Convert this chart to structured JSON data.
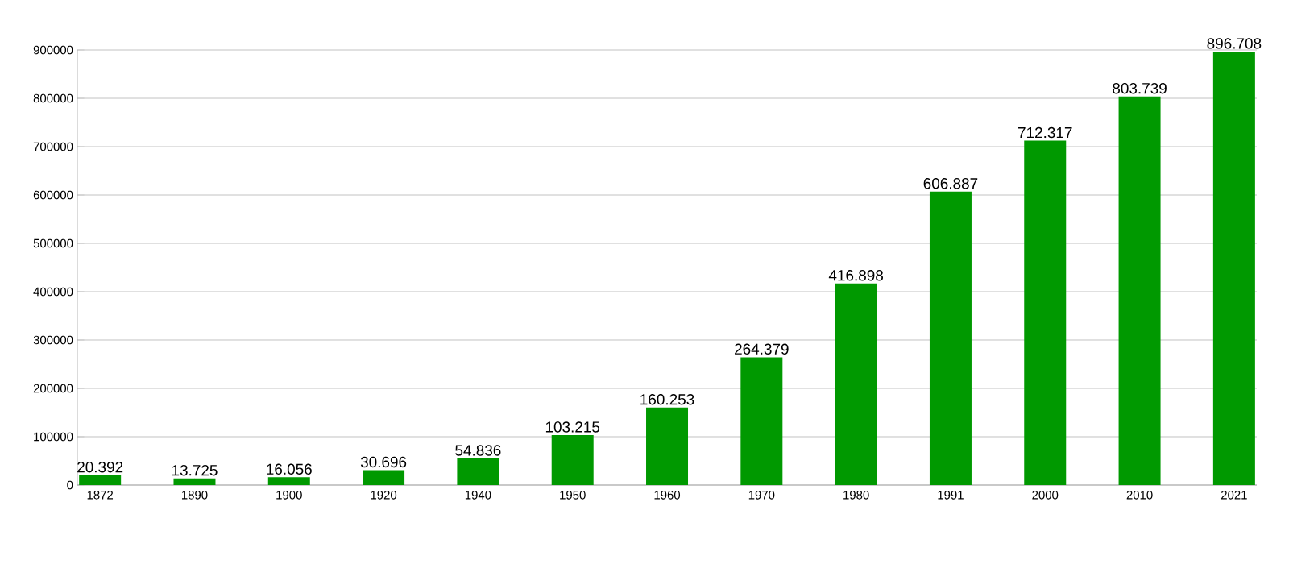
{
  "chart_data": {
    "type": "bar",
    "categories": [
      "1872",
      "1890",
      "1900",
      "1920",
      "1940",
      "1950",
      "1960",
      "1970",
      "1980",
      "1991",
      "2000",
      "2010",
      "2021"
    ],
    "values": [
      20392,
      13725,
      16056,
      30696,
      54836,
      103215,
      160253,
      264379,
      416898,
      606887,
      712317,
      803739,
      896708
    ],
    "value_labels": [
      "20.392",
      "13.725",
      "16.056",
      "30.696",
      "54.836",
      "103.215",
      "160.253",
      "264.379",
      "416.898",
      "606.887",
      "712.317",
      "803.739",
      "896.708"
    ],
    "color": "#009900",
    "ylim": [
      0,
      900000
    ],
    "yticks": [
      0,
      100000,
      200000,
      300000,
      400000,
      500000,
      600000,
      700000,
      800000,
      900000
    ],
    "grid": "y"
  }
}
